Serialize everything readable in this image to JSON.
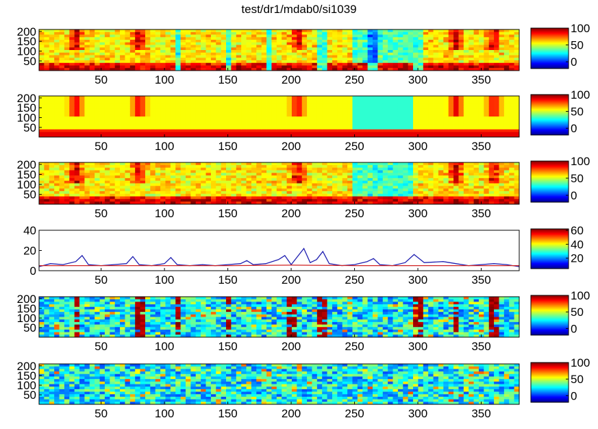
{
  "title": "test/dr1/mdab0/si1039",
  "colormap": [
    "#00008f",
    "#0000ff",
    "#0080ff",
    "#00ffff",
    "#80ff80",
    "#ffff00",
    "#ff8000",
    "#ff0000",
    "#800000"
  ],
  "line_colors": {
    "blue": "#1f1fb0",
    "red": "#d02020"
  },
  "chart_data": [
    {
      "type": "heatmap",
      "title": "test/dr1/mdab0/si1039",
      "x_ticks": [
        50,
        100,
        150,
        200,
        250,
        300,
        350
      ],
      "xlim": [
        1,
        380
      ],
      "y_ticks": [
        50,
        100,
        150,
        200
      ],
      "ylim": [
        1,
        210
      ],
      "y_reversed": false,
      "colorbar": {
        "ticks": [
          0,
          50,
          100
        ],
        "range": [
          -20,
          100
        ]
      },
      "texture": "spectrogram",
      "bright_columns_x": [
        110,
        150,
        183,
        225,
        265,
        300
      ],
      "hot_regions_x": [
        30,
        80,
        205,
        330,
        360
      ]
    },
    {
      "type": "heatmap",
      "x_ticks": [
        50,
        100,
        150,
        200,
        250,
        300,
        350
      ],
      "xlim": [
        1,
        380
      ],
      "y_ticks": [
        50,
        100,
        150,
        200
      ],
      "ylim": [
        1,
        210
      ],
      "colorbar": {
        "ticks": [
          0,
          50,
          100
        ],
        "range": [
          -20,
          100
        ]
      },
      "texture": "smoothed-spectrogram",
      "hot_regions_x": [
        30,
        80,
        205,
        330,
        360
      ]
    },
    {
      "type": "heatmap",
      "x_ticks": [
        50,
        100,
        150,
        200,
        250,
        300,
        350
      ],
      "xlim": [
        1,
        380
      ],
      "y_ticks": [
        50,
        100,
        150,
        200
      ],
      "ylim": [
        1,
        210
      ],
      "colorbar": {
        "ticks": [
          0,
          50,
          100
        ],
        "range": [
          -20,
          100
        ]
      },
      "texture": "spectrogram",
      "hot_regions_x": [
        30,
        80,
        205,
        330,
        360
      ]
    },
    {
      "type": "line",
      "x_ticks": [
        50,
        100,
        150,
        200,
        250,
        300,
        350
      ],
      "xlim": [
        1,
        380
      ],
      "y_ticks": [
        0,
        20,
        40
      ],
      "ylim": [
        0,
        40
      ],
      "colorbar": {
        "ticks": [
          20,
          40,
          60
        ],
        "range": [
          5,
          62
        ]
      },
      "series": [
        {
          "color": "blue",
          "x": [
            1,
            10,
            20,
            30,
            35,
            40,
            50,
            60,
            70,
            75,
            80,
            90,
            100,
            105,
            110,
            120,
            130,
            140,
            150,
            160,
            165,
            170,
            180,
            190,
            195,
            200,
            210,
            215,
            220,
            225,
            230,
            240,
            250,
            260,
            265,
            270,
            280,
            290,
            297,
            305,
            320,
            330,
            340,
            350,
            360,
            370,
            380
          ],
          "y": [
            4,
            7,
            6,
            9,
            15,
            6,
            5,
            6,
            7,
            14,
            6,
            5,
            7,
            13,
            6,
            5,
            6,
            5,
            6,
            7,
            10,
            6,
            7,
            11,
            15,
            6,
            22,
            8,
            11,
            19,
            7,
            5,
            6,
            9,
            12,
            6,
            5,
            8,
            16,
            8,
            9,
            7,
            5,
            6,
            7,
            6,
            4
          ]
        },
        {
          "color": "red",
          "x": [
            1,
            50,
            100,
            150,
            200,
            250,
            300,
            350,
            380
          ],
          "y": [
            5,
            5,
            5,
            5,
            5.5,
            5,
            5,
            5,
            5
          ]
        }
      ]
    },
    {
      "type": "heatmap",
      "x_ticks": [
        50,
        100,
        150,
        200,
        250,
        300,
        350
      ],
      "xlim": [
        1,
        380
      ],
      "y_ticks": [
        50,
        100,
        150,
        200
      ],
      "ylim": [
        1,
        210
      ],
      "colorbar": {
        "ticks": [
          0,
          50,
          100
        ],
        "range": [
          -20,
          100
        ]
      },
      "texture": "noise-with-dark-red-streaks",
      "streaks_x": [
        30,
        80,
        110,
        150,
        200,
        225,
        300,
        330,
        360
      ]
    },
    {
      "type": "heatmap",
      "x_ticks": [
        50,
        100,
        150,
        200,
        250,
        300,
        350
      ],
      "xlim": [
        1,
        380
      ],
      "y_ticks": [
        50,
        100,
        150,
        200
      ],
      "ylim": [
        1,
        210
      ],
      "colorbar": {
        "ticks": [
          0,
          50,
          100
        ],
        "range": [
          -20,
          100
        ]
      },
      "texture": "noise"
    }
  ]
}
